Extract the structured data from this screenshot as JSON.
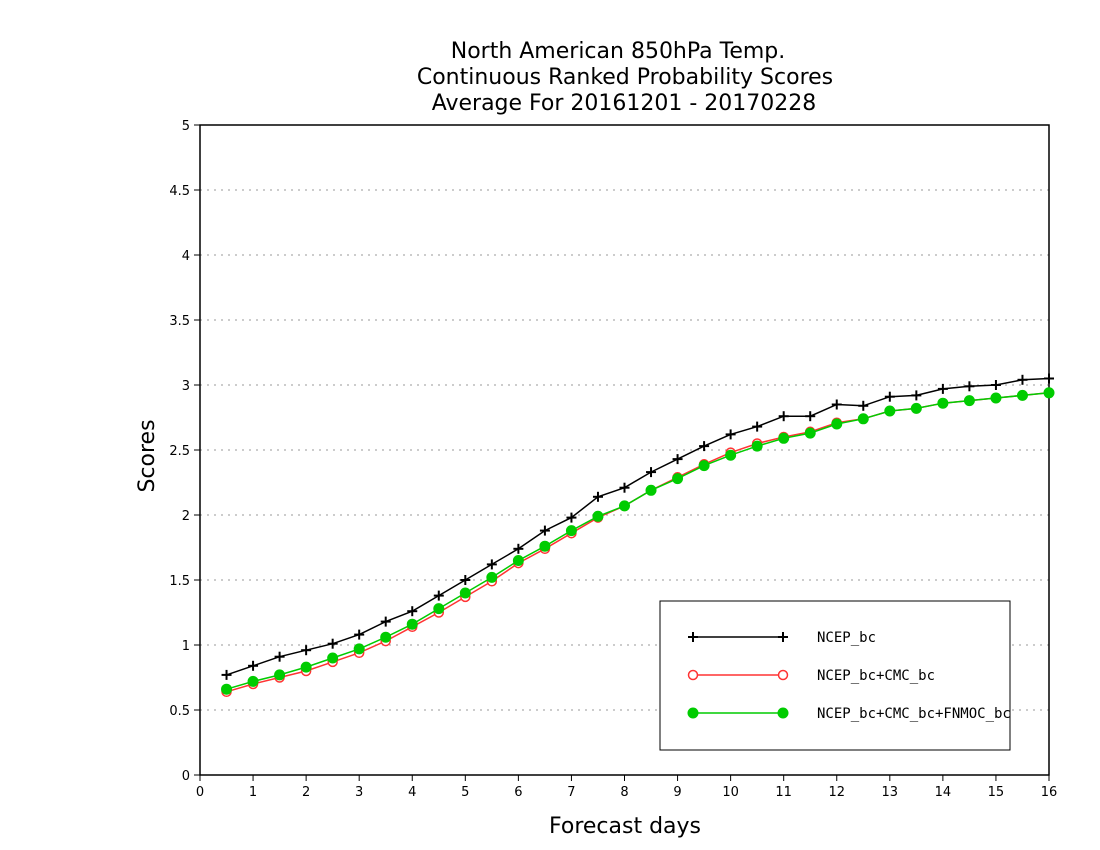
{
  "chart_data": {
    "type": "line",
    "title_lines": [
      "North American 850hPa Temp.",
      "Continuous Ranked Probability Scores",
      "Average For 20161201 - 20170228"
    ],
    "xlabel": "Forecast days",
    "ylabel": "Scores",
    "xlim": [
      0,
      16
    ],
    "ylim": [
      0,
      5
    ],
    "xticks": [
      "0",
      "1",
      "2",
      "3",
      "4",
      "5",
      "6",
      "7",
      "8",
      "9",
      "10",
      "11",
      "12",
      "13",
      "14",
      "15",
      "16"
    ],
    "yticks": [
      "0",
      "0.5",
      "1",
      "1.5",
      "2",
      "2.5",
      "3",
      "3.5",
      "4",
      "4.5",
      "5"
    ],
    "grid": true,
    "legend_position": "bottom-right",
    "x": [
      0.5,
      1,
      1.5,
      2,
      2.5,
      3,
      3.5,
      4,
      4.5,
      5,
      5.5,
      6,
      6.5,
      7,
      7.5,
      8,
      8.5,
      9,
      9.5,
      10,
      10.5,
      11,
      11.5,
      12,
      12.5,
      13,
      13.5,
      14,
      14.5,
      15,
      15.5,
      16
    ],
    "series": [
      {
        "name": "NCEP_bc",
        "color": "#000000",
        "marker": "plus",
        "values": [
          0.77,
          0.84,
          0.91,
          0.96,
          1.01,
          1.08,
          1.18,
          1.26,
          1.38,
          1.5,
          1.62,
          1.74,
          1.88,
          1.98,
          2.14,
          2.21,
          2.33,
          2.43,
          2.53,
          2.62,
          2.68,
          2.76,
          2.76,
          2.85,
          2.84,
          2.91,
          2.92,
          2.97,
          2.99,
          3.0,
          3.04,
          3.05
        ]
      },
      {
        "name": "NCEP_bc+CMC_bc",
        "color": "#ff3333",
        "marker": "open-circle",
        "values": [
          0.64,
          0.7,
          0.75,
          0.8,
          0.87,
          0.94,
          1.03,
          1.14,
          1.25,
          1.37,
          1.49,
          1.63,
          1.74,
          1.86,
          1.98,
          2.07,
          2.19,
          2.29,
          2.39,
          2.48,
          2.55,
          2.6,
          2.64,
          2.71,
          2.74,
          2.8,
          2.82,
          2.86,
          2.88,
          2.9,
          2.92,
          2.94
        ]
      },
      {
        "name": "NCEP_bc+CMC_bc+FNMOC_bc",
        "color": "#00cc00",
        "marker": "filled-circle",
        "values": [
          0.66,
          0.72,
          0.77,
          0.83,
          0.9,
          0.97,
          1.06,
          1.16,
          1.28,
          1.4,
          1.52,
          1.65,
          1.76,
          1.88,
          1.99,
          2.07,
          2.19,
          2.28,
          2.38,
          2.46,
          2.53,
          2.59,
          2.63,
          2.7,
          2.74,
          2.8,
          2.82,
          2.86,
          2.88,
          2.9,
          2.92,
          2.94
        ]
      }
    ]
  }
}
